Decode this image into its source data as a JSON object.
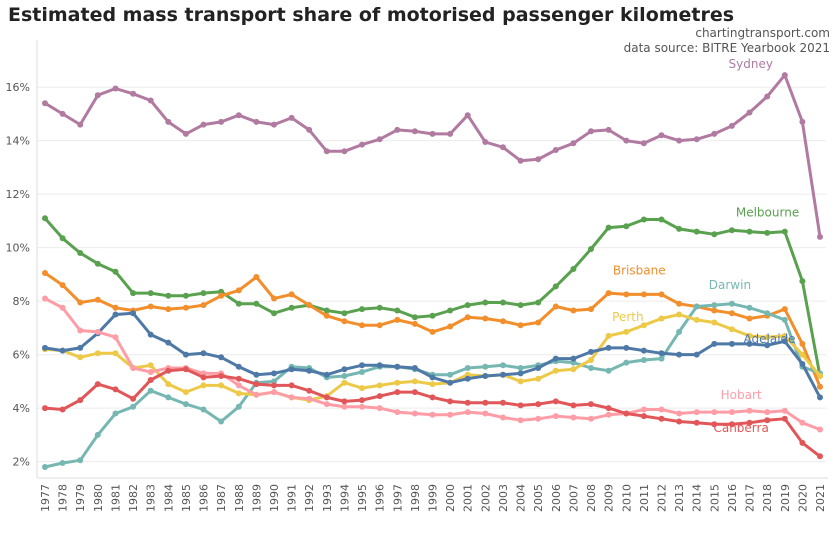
{
  "title": "Estimated mass transport share of motorised passenger kilometres",
  "credit": "chartingtransport.com",
  "source": "data source: BITRE Yearbook 2021",
  "chart_data": {
    "type": "line",
    "title": "Estimated mass transport share of motorised passenger kilometres",
    "xlabel": "",
    "ylabel": "",
    "ylim": [
      1.5,
      17.5
    ],
    "y_ticks": [
      2,
      4,
      6,
      8,
      10,
      12,
      14,
      16
    ],
    "y_tick_suffix": "%",
    "grid": true,
    "legend": "inline labels",
    "x": [
      1977,
      1978,
      1979,
      1980,
      1981,
      1982,
      1983,
      1984,
      1985,
      1986,
      1987,
      1988,
      1989,
      1990,
      1991,
      1992,
      1993,
      1994,
      1995,
      1996,
      1997,
      1998,
      1999,
      2000,
      2001,
      2002,
      2003,
      2004,
      2005,
      2006,
      2007,
      2008,
      2009,
      2010,
      2011,
      2012,
      2013,
      2014,
      2015,
      2016,
      2017,
      2018,
      2019,
      2020,
      2021
    ],
    "series": [
      {
        "name": "Sydney",
        "color": "#b07aa1",
        "values": [
          15.4,
          15.0,
          14.6,
          15.7,
          15.95,
          15.75,
          15.5,
          14.7,
          14.25,
          14.6,
          14.7,
          14.95,
          14.7,
          14.6,
          14.85,
          14.4,
          13.6,
          13.6,
          13.85,
          14.05,
          14.4,
          14.35,
          14.25,
          14.25,
          14.95,
          13.95,
          13.75,
          13.25,
          13.3,
          13.65,
          13.9,
          14.35,
          14.4,
          14.0,
          13.9,
          14.2,
          14.0,
          14.05,
          14.25,
          14.55,
          15.05,
          15.65,
          16.45,
          14.7,
          10.4
        ]
      },
      {
        "name": "Melbourne",
        "color": "#59a14f",
        "values": [
          11.1,
          10.35,
          9.8,
          9.4,
          9.1,
          8.3,
          8.3,
          8.2,
          8.2,
          8.3,
          8.35,
          7.9,
          7.9,
          7.55,
          7.75,
          7.85,
          7.65,
          7.55,
          7.7,
          7.75,
          7.65,
          7.4,
          7.45,
          7.65,
          7.85,
          7.95,
          7.95,
          7.85,
          7.95,
          8.55,
          9.2,
          9.95,
          10.75,
          10.8,
          11.05,
          11.05,
          10.7,
          10.6,
          10.5,
          10.65,
          10.6,
          10.55,
          10.6,
          8.75,
          5.2
        ]
      },
      {
        "name": "Brisbane",
        "color": "#f28e2b",
        "values": [
          9.05,
          8.6,
          7.95,
          8.05,
          7.75,
          7.65,
          7.8,
          7.7,
          7.75,
          7.85,
          8.2,
          8.4,
          8.9,
          8.1,
          8.25,
          7.85,
          7.45,
          7.25,
          7.1,
          7.1,
          7.3,
          7.15,
          6.85,
          7.05,
          7.4,
          7.35,
          7.25,
          7.1,
          7.2,
          7.8,
          7.65,
          7.7,
          8.3,
          8.25,
          8.25,
          8.25,
          7.9,
          7.8,
          7.65,
          7.55,
          7.35,
          7.45,
          7.7,
          6.4,
          4.8
        ]
      },
      {
        "name": "Darwin",
        "color": "#76b7b2",
        "values": [
          1.8,
          1.95,
          2.05,
          3.0,
          3.8,
          4.05,
          4.65,
          4.4,
          4.15,
          3.95,
          3.5,
          4.05,
          4.95,
          5.0,
          5.55,
          5.5,
          5.15,
          5.2,
          5.35,
          5.55,
          5.55,
          5.45,
          5.25,
          5.25,
          5.5,
          5.55,
          5.6,
          5.5,
          5.6,
          5.75,
          5.7,
          5.5,
          5.4,
          5.7,
          5.8,
          5.85,
          6.85,
          7.8,
          7.85,
          7.9,
          7.75,
          7.55,
          7.3,
          5.55,
          5.3
        ]
      },
      {
        "name": "Perth",
        "color": "#edc948",
        "values": [
          6.2,
          6.15,
          5.9,
          6.05,
          6.05,
          5.5,
          5.6,
          4.9,
          4.6,
          4.85,
          4.85,
          4.55,
          4.5,
          4.6,
          4.4,
          4.3,
          4.45,
          4.95,
          4.75,
          4.85,
          4.95,
          5.0,
          4.9,
          4.95,
          5.25,
          5.2,
          5.25,
          5.0,
          5.1,
          5.4,
          5.45,
          5.8,
          6.7,
          6.85,
          7.1,
          7.35,
          7.5,
          7.3,
          7.2,
          6.95,
          6.7,
          6.65,
          6.7,
          6.0,
          5.2
        ]
      },
      {
        "name": "Adelaide",
        "color": "#4e79a7",
        "values": [
          6.25,
          6.15,
          6.25,
          6.8,
          7.5,
          7.55,
          6.75,
          6.45,
          6.0,
          6.05,
          5.9,
          5.55,
          5.25,
          5.3,
          5.45,
          5.4,
          5.25,
          5.45,
          5.6,
          5.6,
          5.55,
          5.5,
          5.15,
          4.95,
          5.1,
          5.2,
          5.25,
          5.3,
          5.5,
          5.85,
          5.85,
          6.1,
          6.25,
          6.25,
          6.15,
          6.05,
          6.0,
          6.0,
          6.4,
          6.4,
          6.4,
          6.35,
          6.5,
          5.65,
          4.4
        ]
      },
      {
        "name": "Hobart",
        "color": "#ff9da7",
        "values": [
          8.1,
          7.75,
          6.9,
          6.85,
          6.65,
          5.5,
          5.35,
          5.5,
          5.5,
          5.3,
          5.3,
          4.85,
          4.5,
          4.6,
          4.4,
          4.35,
          4.15,
          4.05,
          4.05,
          4.0,
          3.85,
          3.8,
          3.75,
          3.75,
          3.85,
          3.8,
          3.65,
          3.55,
          3.6,
          3.7,
          3.65,
          3.6,
          3.75,
          3.8,
          3.95,
          3.95,
          3.8,
          3.85,
          3.85,
          3.85,
          3.9,
          3.85,
          3.9,
          3.45,
          3.2
        ]
      },
      {
        "name": "Canberra",
        "color": "#e15759",
        "values": [
          4.0,
          3.95,
          4.3,
          4.9,
          4.7,
          4.35,
          5.05,
          5.4,
          5.45,
          5.15,
          5.2,
          5.1,
          4.9,
          4.85,
          4.85,
          4.65,
          4.4,
          4.25,
          4.3,
          4.45,
          4.6,
          4.6,
          4.4,
          4.25,
          4.2,
          4.2,
          4.2,
          4.1,
          4.15,
          4.25,
          4.1,
          4.15,
          4.0,
          3.8,
          3.7,
          3.6,
          3.5,
          3.45,
          3.4,
          3.4,
          3.45,
          3.55,
          3.6,
          2.7,
          2.2
        ]
      }
    ]
  }
}
